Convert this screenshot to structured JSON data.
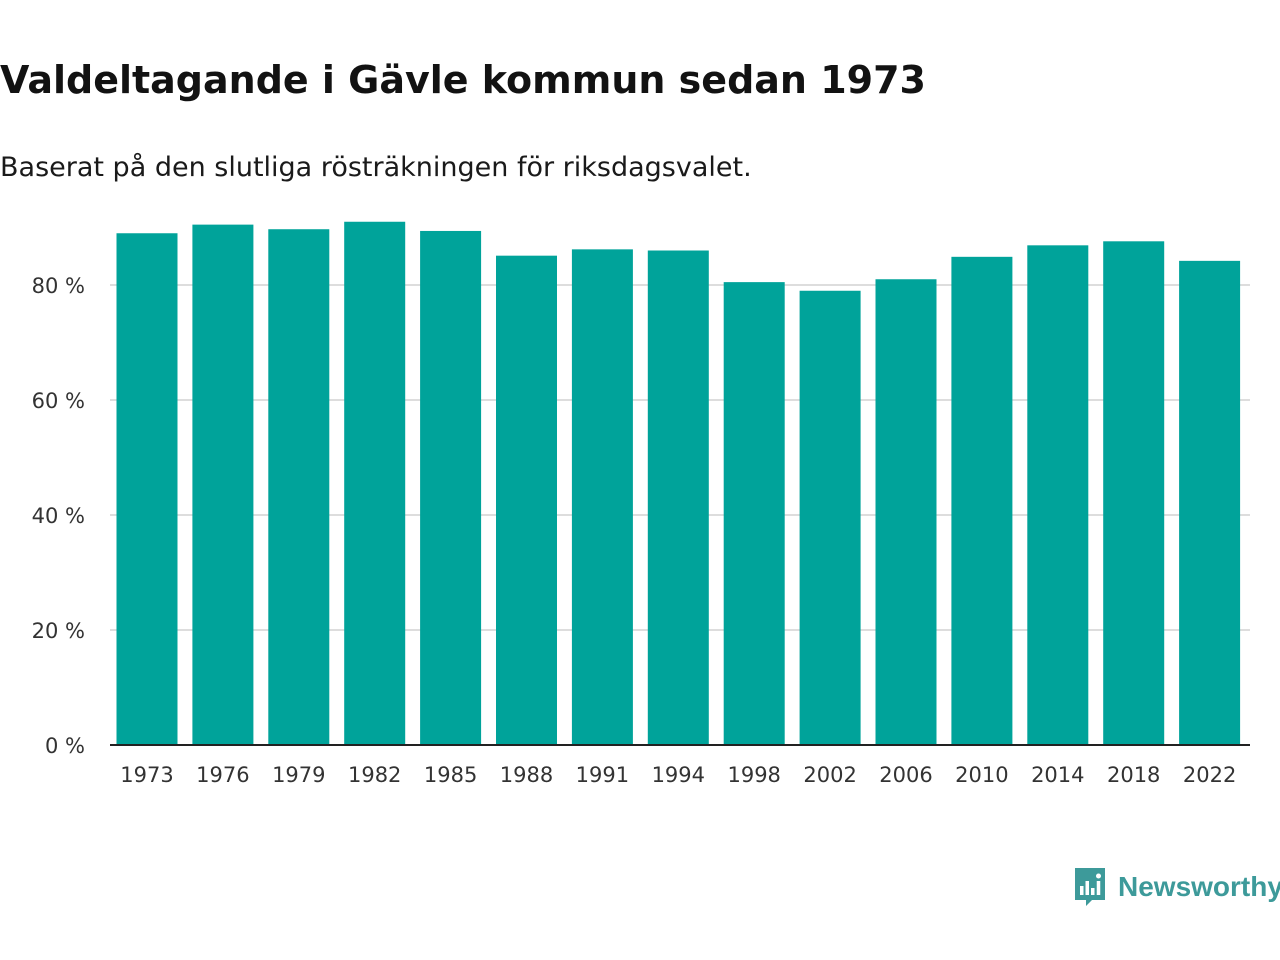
{
  "title": "Valdeltagande i Gävle kommun sedan 1973",
  "subtitle": "Baserat på den slutliga rösträkningen för riksdagsvalet.",
  "brand": {
    "name": "Newsworthy",
    "color": "#3d9a9a"
  },
  "colors": {
    "bar": "#00a39a",
    "grid": "#dddddd",
    "axis": "#222222"
  },
  "chart_data": {
    "type": "bar",
    "title": "Valdeltagande i Gävle kommun sedan 1973",
    "xlabel": "",
    "ylabel": "",
    "ylim": [
      0,
      90
    ],
    "yticks": [
      0,
      20,
      40,
      60,
      80
    ],
    "ytick_labels": [
      "0 %",
      "20 %",
      "40 %",
      "60 %",
      "80 %"
    ],
    "grid": true,
    "categories": [
      "1973",
      "1976",
      "1979",
      "1982",
      "1985",
      "1988",
      "1991",
      "1994",
      "1998",
      "2002",
      "2006",
      "2010",
      "2014",
      "2018",
      "2022"
    ],
    "values": [
      89.0,
      90.5,
      89.7,
      91.0,
      89.4,
      85.1,
      86.2,
      86.0,
      80.5,
      79.0,
      81.0,
      84.9,
      86.9,
      87.6,
      84.2
    ]
  }
}
